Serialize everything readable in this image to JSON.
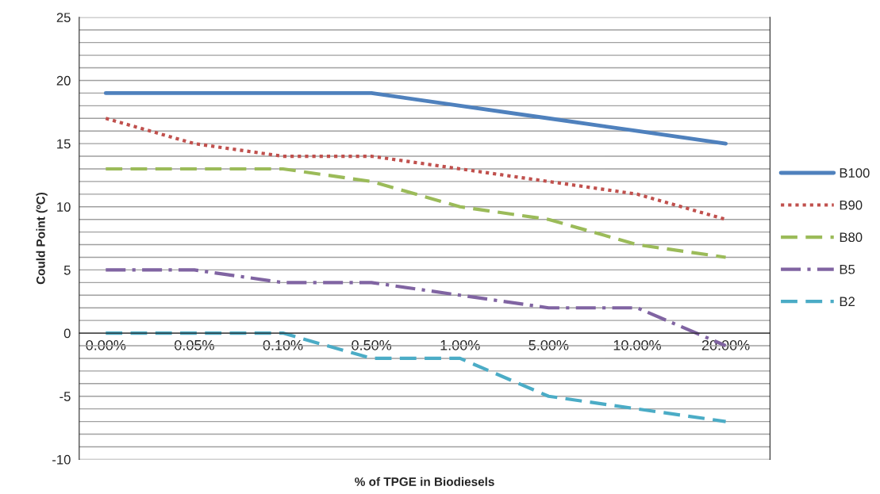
{
  "chart_data": {
    "type": "line",
    "xlabel": "% of TPGE in Biodiesels",
    "ylabel": "Could Point (ºC)",
    "categories": [
      "0.00%",
      "0.05%",
      "0.10%",
      "0.50%",
      "1.00%",
      "5.00%",
      "10.00%",
      "20.00%"
    ],
    "series": [
      {
        "name": "B100",
        "color": "#4f81bd",
        "line_style": "solid",
        "values": [
          19,
          19,
          19,
          19,
          18,
          17,
          16,
          15
        ]
      },
      {
        "name": "B90",
        "color": "#c0504d",
        "line_style": "dotted",
        "values": [
          17,
          15,
          14,
          14,
          13,
          12,
          11,
          9
        ]
      },
      {
        "name": "B80",
        "color": "#9bbb59",
        "line_style": "dashed",
        "values": [
          13,
          13,
          13,
          12,
          10,
          9,
          7,
          6
        ]
      },
      {
        "name": "B5",
        "color": "#8064a2",
        "line_style": "dashdot",
        "values": [
          5,
          5,
          4,
          4,
          3,
          2,
          2,
          -1
        ]
      },
      {
        "name": "B2",
        "color": "#4bacc6",
        "line_style": "dashed",
        "values": [
          0,
          0,
          0,
          -2,
          -2,
          -5,
          -6,
          -7
        ]
      }
    ],
    "ylim": [
      -10,
      25
    ],
    "yticks": [
      -10,
      {
        "value": -9,
        "label": null
      },
      {
        "value": -8,
        "label": null
      },
      {
        "value": -7,
        "label": null
      },
      {
        "value": -6,
        "label": null
      },
      -5,
      {
        "value": -4,
        "label": null
      },
      {
        "value": -3,
        "label": null
      },
      {
        "value": -2,
        "label": null
      },
      {
        "value": -1,
        "label": null
      },
      0,
      {
        "value": 1,
        "label": null
      },
      {
        "value": 2,
        "label": null
      },
      {
        "value": 3,
        "label": null
      },
      {
        "value": 4,
        "label": null
      },
      5,
      {
        "value": 6,
        "label": null
      },
      {
        "value": 7,
        "label": null
      },
      {
        "value": 8,
        "label": null
      },
      {
        "value": 9,
        "label": null
      },
      10,
      {
        "value": 11,
        "label": null
      },
      {
        "value": 12,
        "label": null
      },
      {
        "value": 13,
        "label": null
      },
      {
        "value": 14,
        "label": null
      },
      15,
      {
        "value": 16,
        "label": null
      },
      {
        "value": 17,
        "label": null
      },
      {
        "value": 18,
        "label": null
      },
      {
        "value": 19,
        "label": null
      },
      20,
      {
        "value": 21,
        "label": null
      },
      {
        "value": 22,
        "label": null
      },
      {
        "value": 23,
        "label": null
      },
      {
        "value": 24,
        "label": null
      },
      25
    ],
    "grid": "y",
    "legend": "right",
    "marker": "none"
  }
}
